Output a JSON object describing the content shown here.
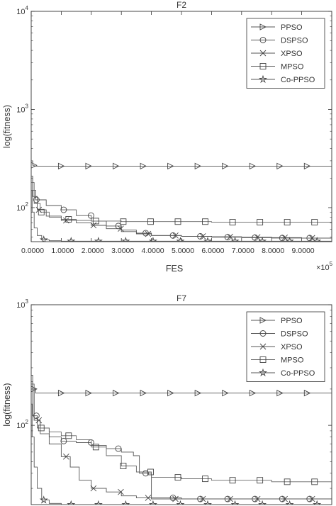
{
  "chart_data": [
    {
      "type": "line",
      "title": "F2",
      "xlabel": "FES",
      "ylabel": "log(fitness)",
      "x_exponent_label": "×10",
      "x_exponent_power": "5",
      "y_scale": "log",
      "xlim": [
        0,
        10
      ],
      "ylim": [
        45,
        10000
      ],
      "x_ticks": [
        0,
        1,
        2,
        3,
        4,
        5,
        6,
        7,
        8,
        9
      ],
      "x_tick_labels": [
        "0.0000",
        "1.0000",
        "2.0000",
        "3.0000",
        "4.0000",
        "5.0000",
        "6.0000",
        "7.0000",
        "8.0000",
        "9.0000"
      ],
      "y_ticks": [
        100,
        1000,
        10000
      ],
      "y_tick_base": "10",
      "y_tick_exponents": [
        "2",
        "3",
        "4"
      ],
      "legend_position": "top-right",
      "series": [
        {
          "name": "PPSO",
          "marker": "triangle-right",
          "x": [
            0,
            0.05,
            0.1,
            1,
            10
          ],
          "y": [
            300,
            270,
            265,
            265,
            265
          ]
        },
        {
          "name": "DSPSO",
          "marker": "circle",
          "x": [
            0,
            0.05,
            0.15,
            0.5,
            1.0,
            1.5,
            2.0,
            2.5,
            3.0,
            3.5,
            4.0,
            5.0,
            6.0,
            7.0,
            8.0,
            9.0,
            10.0
          ],
          "y": [
            210,
            150,
            120,
            105,
            95,
            83,
            73,
            65,
            59,
            55,
            52,
            51,
            50,
            49.5,
            49,
            49,
            48
          ]
        },
        {
          "name": "XPSO",
          "marker": "x",
          "x": [
            0,
            0.05,
            0.2,
            0.5,
            1.0,
            1.5,
            2.0,
            2.5,
            3.0,
            3.5,
            4.0,
            5.0,
            6.0,
            7.0,
            8.0,
            9.0,
            10.0
          ],
          "y": [
            200,
            130,
            95,
            82,
            74,
            70,
            66,
            61,
            57,
            54,
            52,
            51,
            50.5,
            50,
            49.5,
            49,
            49
          ]
        },
        {
          "name": "MPSO",
          "marker": "square",
          "x": [
            0,
            0.1,
            0.3,
            0.6,
            1.0,
            1.5,
            2.0,
            3.0,
            4.0,
            5.0,
            6.0,
            7.0,
            8.0,
            9.0,
            10.0
          ],
          "y": [
            180,
            110,
            90,
            80,
            76,
            74,
            73,
            72,
            72,
            72,
            71,
            71,
            71,
            71,
            71
          ]
        },
        {
          "name": "Co-PPSO",
          "marker": "star",
          "x": [
            0,
            0.03,
            0.1,
            0.2,
            0.35,
            0.6,
            1.0,
            2.0,
            4.0,
            6.0,
            8.0,
            10.0
          ],
          "y": [
            150,
            90,
            62,
            52,
            47,
            46,
            45.5,
            45.5,
            45.5,
            45.5,
            45.5,
            45.5
          ]
        }
      ]
    },
    {
      "type": "line",
      "title": "F7",
      "xlabel": "",
      "ylabel": "log(fitness)",
      "y_scale": "log",
      "xlim": [
        0,
        10
      ],
      "ylim": [
        22,
        1000
      ],
      "y_ticks": [
        100,
        1000
      ],
      "y_tick_base": "10",
      "y_tick_exponents": [
        "2",
        "3"
      ],
      "legend_position": "top-right",
      "series": [
        {
          "name": "PPSO",
          "marker": "triangle-right",
          "x": [
            0,
            0.05,
            0.15,
            1,
            10
          ],
          "y": [
            230,
            200,
            185,
            185,
            185
          ]
        },
        {
          "name": "DSPSO",
          "marker": "circle",
          "x": [
            0,
            0.05,
            0.2,
            0.6,
            1.0,
            1.5,
            2.0,
            2.5,
            3.0,
            3.4,
            3.6,
            4.0,
            5.0,
            6.0,
            7.0,
            8.0,
            10.0
          ],
          "y": [
            260,
            120,
            95,
            80,
            74,
            72,
            68,
            64,
            60,
            56,
            40,
            25,
            24.5,
            24.5,
            24.5,
            24.5,
            24.5
          ]
        },
        {
          "name": "XPSO",
          "marker": "x",
          "x": [
            0,
            0.1,
            0.3,
            0.6,
            1.0,
            1.3,
            1.6,
            2.0,
            2.5,
            3.0,
            3.5,
            4.0,
            5.0,
            6.0,
            8.0,
            10.0
          ],
          "y": [
            200,
            110,
            85,
            70,
            55,
            45,
            35,
            30,
            28,
            26,
            25,
            24.5,
            24.5,
            24.5,
            24.5,
            24.5
          ]
        },
        {
          "name": "MPSO",
          "marker": "square",
          "x": [
            0,
            0.1,
            0.3,
            0.6,
            1.0,
            1.5,
            2.0,
            2.5,
            3.0,
            3.5,
            4.0,
            5.0,
            6.0,
            7.0,
            8.0,
            9.0,
            10.0
          ],
          "y": [
            220,
            110,
            95,
            88,
            82,
            76,
            66,
            56,
            46,
            41,
            37,
            36,
            35,
            35,
            34,
            34,
            34
          ]
        },
        {
          "name": "Co-PPSO",
          "marker": "star",
          "x": [
            0,
            0.03,
            0.1,
            0.2,
            0.35,
            0.6,
            1.0,
            2.0,
            4.0,
            6.0,
            8.0,
            10.0
          ],
          "y": [
            150,
            80,
            45,
            30,
            24,
            22.5,
            22,
            22,
            22,
            22,
            22,
            22
          ]
        }
      ]
    }
  ]
}
